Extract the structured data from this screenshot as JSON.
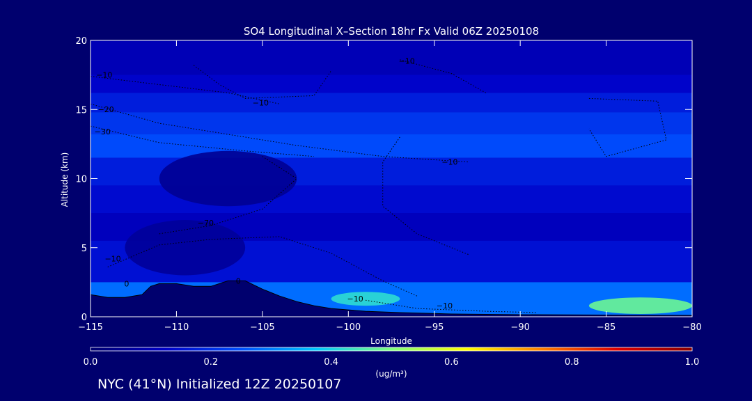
{
  "chart_data": {
    "type": "heatmap",
    "title": "SO4 Longitudinal X–Section 18hr  Fx Valid 06Z 20250108",
    "xlabel": "Longitude",
    "ylabel": "Altitude (km)",
    "xlim": [
      -115,
      -80
    ],
    "ylim": [
      0,
      20
    ],
    "x_ticks": [
      "−115",
      "−110",
      "−105",
      "−100",
      "−95",
      "−90",
      "−85",
      "−80"
    ],
    "x_tick_values": [
      -115,
      -110,
      -105,
      -100,
      -95,
      -90,
      -85,
      -80
    ],
    "y_ticks": [
      "0",
      "5",
      "10",
      "15",
      "20"
    ],
    "y_tick_values": [
      0,
      5,
      10,
      15,
      20
    ],
    "colorbar": {
      "min": 0.0,
      "max": 1.0,
      "tick_labels": [
        "0.0",
        "0.2",
        "0.4",
        "0.6",
        "0.8",
        "1.0"
      ],
      "tick_values": [
        0,
        0.2,
        0.4,
        0.6,
        0.8,
        1.0
      ],
      "unit_label": "(ug/m³)",
      "colors": [
        "#00006e",
        "#0000c8",
        "#0050ff",
        "#00c8ff",
        "#80ff80",
        "#ffff00",
        "#ff8000",
        "#e00000",
        "#8b0000"
      ]
    },
    "bands": [
      {
        "altitude_range": [
          17.5,
          20
        ],
        "level": 0.1
      },
      {
        "altitude_range": [
          16.2,
          17.5
        ],
        "level": 0.13
      },
      {
        "altitude_range": [
          14.8,
          16.2
        ],
        "level": 0.17
      },
      {
        "altitude_range": [
          13.2,
          14.8
        ],
        "level": 0.21
      },
      {
        "altitude_range": [
          11.5,
          13.2
        ],
        "level": 0.24
      },
      {
        "altitude_range": [
          9.5,
          11.5
        ],
        "level": 0.17
      },
      {
        "altitude_range": [
          7.5,
          9.5
        ],
        "level": 0.14
      },
      {
        "altitude_range": [
          5.5,
          7.5
        ],
        "level": 0.11
      },
      {
        "altitude_range": [
          2.5,
          5.5
        ],
        "level": 0.15
      },
      {
        "altitude_range": [
          0,
          2.5
        ],
        "level": 0.28
      }
    ],
    "hotspots": [
      {
        "lon": [
          -111,
          -103
        ],
        "alt": [
          8,
          12
        ],
        "level": 0.05
      },
      {
        "lon": [
          -113,
          -106
        ],
        "alt": [
          3,
          7
        ],
        "level": 0.06
      },
      {
        "lon": [
          -101,
          -97
        ],
        "alt": [
          0.8,
          1.8
        ],
        "level": 0.42
      },
      {
        "lon": [
          -86,
          -80
        ],
        "alt": [
          0.2,
          1.4
        ],
        "level": 0.48
      }
    ],
    "terrain": [
      [
        -115,
        1.6
      ],
      [
        -114,
        1.4
      ],
      [
        -113,
        1.4
      ],
      [
        -112,
        1.6
      ],
      [
        -111.5,
        2.2
      ],
      [
        -111,
        2.4
      ],
      [
        -110,
        2.4
      ],
      [
        -109,
        2.2
      ],
      [
        -108,
        2.2
      ],
      [
        -107,
        2.6
      ],
      [
        -106,
        2.6
      ],
      [
        -105,
        2.0
      ],
      [
        -104,
        1.5
      ],
      [
        -103,
        1.1
      ],
      [
        -102,
        0.8
      ],
      [
        -101,
        0.6
      ],
      [
        -100,
        0.5
      ],
      [
        -99,
        0.4
      ],
      [
        -97,
        0.3
      ],
      [
        -94,
        0.2
      ],
      [
        -90,
        0.15
      ],
      [
        -80,
        0.1
      ]
    ],
    "contour_labels": [
      {
        "text": "−10",
        "lon": -114.2,
        "alt": 17.3
      },
      {
        "text": "−10",
        "lon": -96.6,
        "alt": 18.3
      },
      {
        "text": "−10",
        "lon": -105.1,
        "alt": 15.3
      },
      {
        "text": "−20",
        "lon": -114.1,
        "alt": 14.8
      },
      {
        "text": "−30",
        "lon": -114.3,
        "alt": 13.2
      },
      {
        "text": "−10",
        "lon": -94.1,
        "alt": 11.0
      },
      {
        "text": "−70",
        "lon": -108.3,
        "alt": 6.6
      },
      {
        "text": "−10",
        "lon": -113.7,
        "alt": 4.0
      },
      {
        "text": "0",
        "lon": -112.9,
        "alt": 2.2
      },
      {
        "text": "0",
        "lon": -106.4,
        "alt": 2.4
      },
      {
        "text": "−10",
        "lon": -99.6,
        "alt": 1.1
      },
      {
        "text": "−10",
        "lon": -94.4,
        "alt": 0.6
      }
    ],
    "contours": [
      [
        [
          -115,
          17.4
        ],
        [
          -111,
          16.8
        ],
        [
          -107,
          16.2
        ],
        [
          -104,
          15.4
        ]
      ],
      [
        [
          -97,
          18.6
        ],
        [
          -94,
          17.6
        ],
        [
          -92,
          16.2
        ]
      ],
      [
        [
          -109,
          18.2
        ],
        [
          -107.5,
          16.8
        ],
        [
          -106,
          15.8
        ],
        [
          -102,
          16.0
        ],
        [
          -101,
          17.8
        ]
      ],
      [
        [
          -115,
          15.4
        ],
        [
          -111,
          14.0
        ],
        [
          -107,
          13.2
        ],
        [
          -103,
          12.4
        ],
        [
          -98,
          11.6
        ],
        [
          -93,
          11.2
        ]
      ],
      [
        [
          -115,
          13.8
        ],
        [
          -111,
          12.6
        ],
        [
          -106,
          12.0
        ],
        [
          -102,
          11.6
        ]
      ],
      [
        [
          -97,
          13.0
        ],
        [
          -98,
          11.2
        ],
        [
          -98,
          8.0
        ],
        [
          -96,
          6.0
        ],
        [
          -93,
          4.5
        ]
      ],
      [
        [
          -111,
          6.0
        ],
        [
          -108,
          6.6
        ],
        [
          -105,
          7.8
        ],
        [
          -103,
          10.0
        ],
        [
          -105,
          11.6
        ]
      ],
      [
        [
          -114,
          3.6
        ],
        [
          -111,
          5.2
        ],
        [
          -108,
          5.6
        ],
        [
          -104,
          5.8
        ],
        [
          -101,
          4.6
        ],
        [
          -98,
          2.6
        ],
        [
          -96,
          1.5
        ]
      ],
      [
        [
          -99,
          1.2
        ],
        [
          -96,
          0.6
        ],
        [
          -92,
          0.4
        ],
        [
          -89,
          0.3
        ]
      ],
      [
        [
          -86,
          15.8
        ],
        [
          -82,
          15.6
        ],
        [
          -81.5,
          12.8
        ],
        [
          -85,
          11.6
        ],
        [
          -86,
          13.6
        ]
      ]
    ]
  },
  "footer": "NYC (41°N) Initialized 12Z 20250107"
}
